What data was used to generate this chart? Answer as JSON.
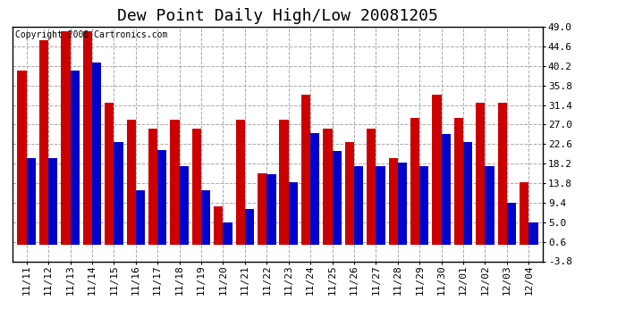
{
  "title": "Dew Point Daily High/Low 20081205",
  "copyright": "Copyright 2008 Cartronics.com",
  "categories": [
    "11/11",
    "11/12",
    "11/13",
    "11/14",
    "11/15",
    "11/16",
    "11/17",
    "11/18",
    "11/19",
    "11/20",
    "11/21",
    "11/22",
    "11/23",
    "11/24",
    "11/25",
    "11/26",
    "11/27",
    "11/28",
    "11/29",
    "11/30",
    "12/01",
    "12/02",
    "12/03",
    "12/04"
  ],
  "highs": [
    39.2,
    46.0,
    48.0,
    48.0,
    32.0,
    28.0,
    26.0,
    28.0,
    26.0,
    8.6,
    28.0,
    16.0,
    28.0,
    33.8,
    26.0,
    23.0,
    26.0,
    19.4,
    28.4,
    33.8,
    28.4,
    32.0,
    32.0,
    14.0
  ],
  "lows": [
    19.4,
    19.4,
    39.2,
    41.0,
    23.0,
    12.2,
    21.2,
    17.6,
    12.2,
    5.0,
    8.0,
    15.8,
    14.0,
    25.0,
    21.0,
    17.6,
    17.6,
    18.5,
    17.6,
    24.8,
    23.0,
    17.6,
    9.4,
    5.0
  ],
  "bar_color_high": "#cc0000",
  "bar_color_low": "#0000cc",
  "background_color": "#ffffff",
  "grid_color": "#aaaaaa",
  "yticks": [
    -3.8,
    0.6,
    5.0,
    9.4,
    13.8,
    18.2,
    22.6,
    27.0,
    31.4,
    35.8,
    40.2,
    44.6,
    49.0
  ],
  "ymin": -3.8,
  "ymax": 49.0,
  "title_fontsize": 13,
  "tick_fontsize": 8,
  "copyright_fontsize": 7
}
